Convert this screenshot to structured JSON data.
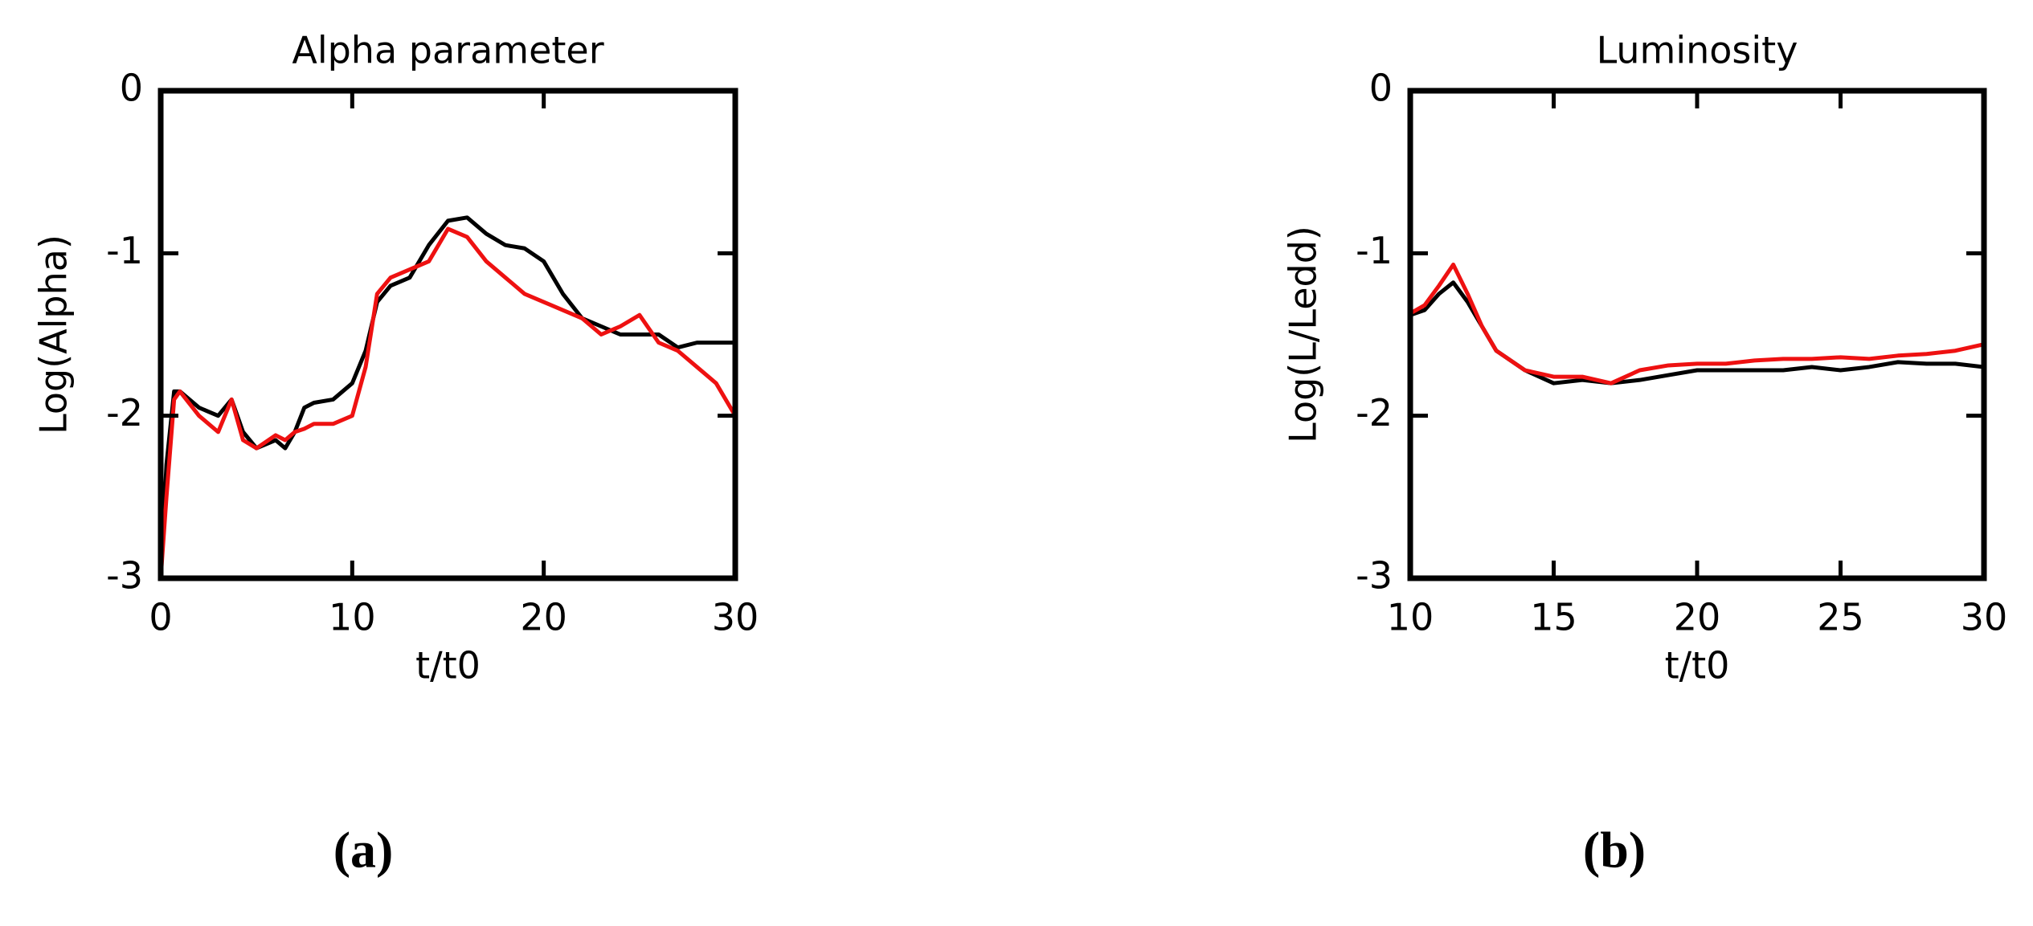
{
  "chart_data": [
    {
      "type": "line",
      "title": "Alpha parameter",
      "x_label": "t/t0",
      "y_label": "Log(Alpha)",
      "panel_label": "(a)",
      "x": [
        0,
        0.3,
        0.7,
        1,
        2,
        3,
        3.7,
        4.3,
        5,
        6,
        6.5,
        7,
        7.5,
        8,
        9,
        10,
        10.7,
        11.3,
        12,
        13,
        14,
        15,
        16,
        17,
        18,
        19,
        20,
        21,
        22,
        23,
        24,
        25,
        26,
        27,
        28,
        29,
        30
      ],
      "series": [
        {
          "color": "#000000",
          "values": [
            -3.0,
            -2.3,
            -1.85,
            -1.85,
            -1.95,
            -2.0,
            -1.9,
            -2.1,
            -2.2,
            -2.15,
            -2.2,
            -2.1,
            -1.95,
            -1.92,
            -1.9,
            -1.8,
            -1.6,
            -1.3,
            -1.2,
            -1.15,
            -0.95,
            -0.8,
            -0.78,
            -0.88,
            -0.95,
            -0.97,
            -1.05,
            -1.25,
            -1.4,
            -1.45,
            -1.5,
            -1.5,
            -1.5,
            -1.58,
            -1.55,
            -1.55,
            -1.55
          ]
        },
        {
          "color": "#ee1111",
          "values": [
            -3.0,
            -2.5,
            -1.9,
            -1.85,
            -2.0,
            -2.1,
            -1.9,
            -2.15,
            -2.2,
            -2.12,
            -2.15,
            -2.1,
            -2.08,
            -2.05,
            -2.05,
            -2.0,
            -1.7,
            -1.25,
            -1.15,
            -1.1,
            -1.05,
            -0.85,
            -0.9,
            -1.05,
            -1.15,
            -1.25,
            -1.3,
            -1.35,
            -1.4,
            -1.5,
            -1.45,
            -1.38,
            -1.55,
            -1.6,
            -1.7,
            -1.8,
            -2.0
          ]
        }
      ],
      "xlim": [
        0,
        30
      ],
      "xticks": [
        0,
        10,
        20,
        30
      ],
      "ylim": [
        -3,
        0
      ],
      "yticks": [
        -3,
        -2,
        -1,
        0
      ]
    },
    {
      "type": "line",
      "title": "Luminosity",
      "x_label": "t/t0",
      "y_label": "Log(L/Ledd)",
      "panel_label": "(b)",
      "x": [
        10,
        10.5,
        11,
        11.5,
        12,
        12.5,
        13,
        14,
        15,
        16,
        17,
        18,
        19,
        20,
        21,
        22,
        23,
        24,
        25,
        26,
        27,
        28,
        29,
        30
      ],
      "series": [
        {
          "color": "#000000",
          "values": [
            -1.38,
            -1.35,
            -1.25,
            -1.18,
            -1.3,
            -1.45,
            -1.6,
            -1.72,
            -1.8,
            -1.78,
            -1.8,
            -1.78,
            -1.75,
            -1.72,
            -1.72,
            -1.72,
            -1.72,
            -1.7,
            -1.72,
            -1.7,
            -1.67,
            -1.68,
            -1.68,
            -1.7
          ]
        },
        {
          "color": "#ee1111",
          "values": [
            -1.37,
            -1.32,
            -1.2,
            -1.07,
            -1.25,
            -1.45,
            -1.6,
            -1.72,
            -1.76,
            -1.76,
            -1.8,
            -1.72,
            -1.69,
            -1.68,
            -1.68,
            -1.66,
            -1.65,
            -1.65,
            -1.64,
            -1.65,
            -1.63,
            -1.62,
            -1.6,
            -1.56
          ]
        }
      ],
      "xlim": [
        10,
        30
      ],
      "xticks": [
        10,
        15,
        20,
        25,
        30
      ],
      "ylim": [
        -3,
        0
      ],
      "yticks": [
        -3,
        -2,
        -1,
        0
      ]
    }
  ]
}
